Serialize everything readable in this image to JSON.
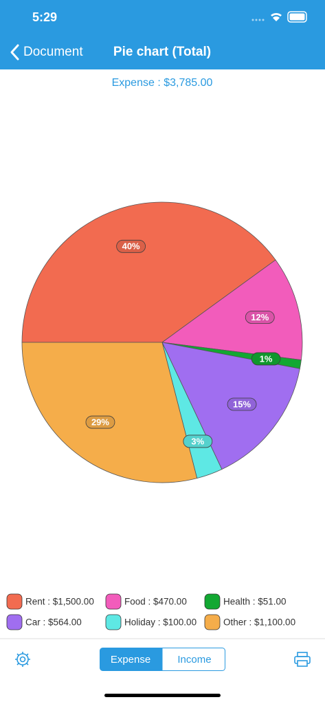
{
  "status_bar": {
    "time": "5:29"
  },
  "nav": {
    "back": "Document",
    "title": "Pie chart (Total)"
  },
  "chart_data": {
    "type": "pie",
    "subtitle": "Expense : $3,785.00",
    "categories": [
      "Rent : $1,500.00",
      "Food : $470.00",
      "Health : $51.00",
      "Car : $564.00",
      "Holiday : $100.00",
      "Other : $1,100.00"
    ],
    "values": [
      40,
      12,
      1,
      15,
      3,
      29
    ],
    "value_labels": [
      "40%",
      "12%",
      "1%",
      "15%",
      "3%",
      "29%"
    ],
    "colors": [
      "#f26b50",
      "#f25cbb",
      "#12a832",
      "#a06ef0",
      "#5ee8e4",
      "#f5ad4a"
    ]
  },
  "toolbar": {
    "segments": [
      "Expense",
      "Income"
    ]
  }
}
